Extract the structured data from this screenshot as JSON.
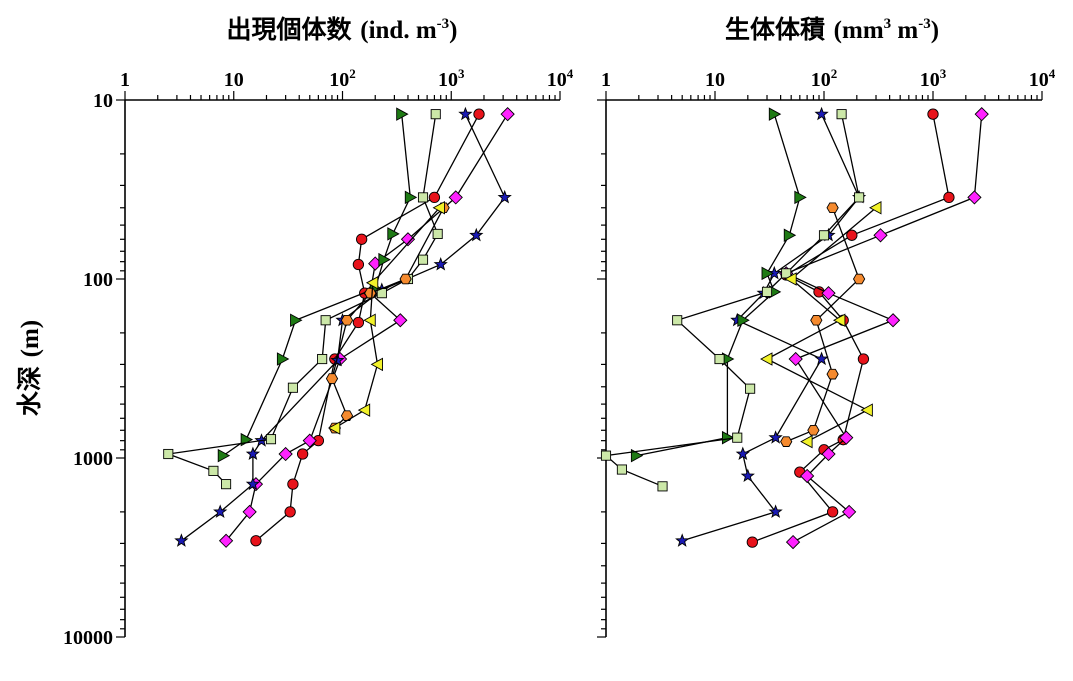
{
  "chart_data": [
    {
      "type": "line",
      "title": "出現個体数 (ind. m-3)",
      "title_main": "出現個体数",
      "title_unit_a": "(ind. m",
      "title_sup": "-3",
      "title_unit_b": ")",
      "x_scale": "log",
      "xlim": [
        1,
        10000
      ],
      "x_ticks": [
        1,
        10,
        100,
        1000,
        10000
      ],
      "x_tick_labels": [
        {
          "base": "1",
          "sup": ""
        },
        {
          "base": "10",
          "sup": ""
        },
        {
          "base": "10",
          "sup": "2"
        },
        {
          "base": "10",
          "sup": "3"
        },
        {
          "base": "10",
          "sup": "4"
        }
      ],
      "x_axis_position": "top",
      "ylabel_main": "水深",
      "ylabel_unit": "(m)",
      "y_scale": "log",
      "ylim": [
        10,
        10000
      ],
      "y_inverted": true,
      "y_ticks": [
        10,
        100,
        1000,
        10000
      ],
      "y_tick_labels": [
        "10",
        "100",
        "1000",
        "10000"
      ],
      "series": [
        {
          "color": "#e8131b",
          "marker": "circle",
          "points": [
            [
              1800,
              12
            ],
            [
              700,
              35
            ],
            [
              150,
              60
            ],
            [
              140,
              83
            ],
            [
              160,
              120
            ],
            [
              140,
              175
            ],
            [
              85,
              280
            ],
            [
              60,
              800
            ],
            [
              43,
              950
            ],
            [
              35,
              1400
            ],
            [
              33,
              2000
            ],
            [
              16,
              2900
            ]
          ]
        },
        {
          "color": "#ff22ff",
          "marker": "diamond",
          "points": [
            [
              3300,
              12
            ],
            [
              1100,
              35
            ],
            [
              400,
              60
            ],
            [
              200,
              82
            ],
            [
              180,
              120
            ],
            [
              340,
              170
            ],
            [
              95,
              280
            ],
            [
              50,
              800
            ],
            [
              30,
              950
            ],
            [
              16,
              1400
            ],
            [
              14,
              2000
            ],
            [
              8.5,
              2900
            ]
          ]
        },
        {
          "color": "#1a1ab4",
          "marker": "star",
          "points": [
            [
              1350,
              12
            ],
            [
              3100,
              35
            ],
            [
              1700,
              57
            ],
            [
              800,
              83
            ],
            [
              230,
              115
            ],
            [
              100,
              170
            ],
            [
              90,
              285
            ],
            [
              18,
              800
            ],
            [
              15,
              950
            ],
            [
              15,
              1400
            ],
            [
              7.5,
              2000
            ],
            [
              3.3,
              2900
            ]
          ]
        },
        {
          "color": "#1e7a14",
          "marker": "triangle-right",
          "points": [
            [
              350,
              12
            ],
            [
              420,
              35
            ],
            [
              290,
              56
            ],
            [
              240,
              78
            ],
            [
              200,
              113
            ],
            [
              37,
              170
            ],
            [
              28,
              280
            ],
            [
              13,
              790
            ],
            [
              8,
              970
            ]
          ]
        },
        {
          "color": "#cce8a8",
          "marker": "square",
          "points": [
            [
              720,
              12
            ],
            [
              550,
              35
            ],
            [
              750,
              56
            ],
            [
              550,
              78
            ],
            [
              400,
              100
            ],
            [
              230,
              120
            ],
            [
              70,
              170
            ],
            [
              65,
              280
            ],
            [
              35,
              405
            ],
            [
              22,
              785
            ],
            [
              2.5,
              950
            ],
            [
              6.5,
              1180
            ],
            [
              8.5,
              1400
            ]
          ]
        },
        {
          "color": "#f58a2e",
          "marker": "hexagon",
          "points": [
            [
              850,
              40
            ],
            [
              380,
              100
            ],
            [
              180,
              120
            ],
            [
              110,
              170
            ],
            [
              80,
              360
            ],
            [
              110,
              580
            ],
            [
              85,
              680
            ]
          ]
        },
        {
          "color": "#f2f22a",
          "marker": "triangle-left",
          "points": [
            [
              780,
              40
            ],
            [
              190,
              105
            ],
            [
              180,
              170
            ],
            [
              210,
              300
            ],
            [
              160,
              540
            ],
            [
              85,
              680
            ]
          ]
        }
      ]
    },
    {
      "type": "line",
      "title": "生体体積 (mm3 m-3)",
      "title_main": "生体体積",
      "title_unit_a": "(mm",
      "title_sup": "3",
      "title_unit_mid": " m",
      "title_sup2": "-3",
      "title_unit_b": ")",
      "x_scale": "log",
      "xlim": [
        1,
        10000
      ],
      "x_ticks": [
        1,
        10,
        100,
        1000,
        10000
      ],
      "x_tick_labels": [
        {
          "base": "1",
          "sup": ""
        },
        {
          "base": "10",
          "sup": ""
        },
        {
          "base": "10",
          "sup": "2"
        },
        {
          "base": "10",
          "sup": "3"
        },
        {
          "base": "10",
          "sup": "4"
        }
      ],
      "x_axis_position": "top",
      "y_scale": "log",
      "ylim": [
        10,
        10000
      ],
      "y_inverted": true,
      "series": [
        {
          "color": "#e8131b",
          "marker": "circle",
          "points": [
            [
              1000,
              12
            ],
            [
              1400,
              35
            ],
            [
              180,
              57
            ],
            [
              45,
              95
            ],
            [
              90,
              118
            ],
            [
              150,
              170
            ],
            [
              230,
              280
            ],
            [
              150,
              790
            ],
            [
              100,
              900
            ],
            [
              60,
              1200
            ],
            [
              120,
              2000
            ],
            [
              22,
              2950
            ]
          ]
        },
        {
          "color": "#ff22ff",
          "marker": "diamond",
          "points": [
            [
              2800,
              12
            ],
            [
              2400,
              35
            ],
            [
              330,
              57
            ],
            [
              45,
              93
            ],
            [
              110,
              120
            ],
            [
              430,
              170
            ],
            [
              55,
              280
            ],
            [
              160,
              770
            ],
            [
              110,
              950
            ],
            [
              70,
              1260
            ],
            [
              170,
              2000
            ],
            [
              52,
              2950
            ]
          ]
        },
        {
          "color": "#1a1ab4",
          "marker": "star",
          "points": [
            [
              95,
              12
            ],
            [
              210,
              35
            ],
            [
              110,
              57
            ],
            [
              35,
              93
            ],
            [
              28,
              120
            ],
            [
              16,
              170
            ],
            [
              95,
              280
            ],
            [
              36,
              770
            ],
            [
              18,
              950
            ],
            [
              20,
              1260
            ],
            [
              36,
              2000
            ],
            [
              5,
              2900
            ]
          ]
        },
        {
          "color": "#1e7a14",
          "marker": "triangle-right",
          "points": [
            [
              35,
              12
            ],
            [
              60,
              35
            ],
            [
              48,
              57
            ],
            [
              30,
              93
            ],
            [
              35,
              118
            ],
            [
              18,
              170
            ],
            [
              13,
              280
            ],
            [
              13,
              770
            ],
            [
              1.9,
              970
            ]
          ]
        },
        {
          "color": "#cce8a8",
          "marker": "square",
          "points": [
            [
              145,
              12
            ],
            [
              210,
              35
            ],
            [
              100,
              57
            ],
            [
              45,
              93
            ],
            [
              30,
              118
            ],
            [
              4.5,
              170
            ],
            [
              11,
              280
            ],
            [
              21,
              410
            ],
            [
              16,
              770
            ],
            [
              1,
              970
            ],
            [
              1.4,
              1160
            ],
            [
              3.3,
              1440
            ]
          ]
        },
        {
          "color": "#f58a2e",
          "marker": "hexagon",
          "points": [
            [
              120,
              40
            ],
            [
              210,
              100
            ],
            [
              85,
              170
            ],
            [
              120,
              340
            ],
            [
              80,
              700
            ],
            [
              45,
              810
            ]
          ]
        },
        {
          "color": "#f2f22a",
          "marker": "triangle-left",
          "points": [
            [
              300,
              40
            ],
            [
              50,
              100
            ],
            [
              140,
              170
            ],
            [
              30,
              280
            ],
            [
              250,
              540
            ],
            [
              70,
              810
            ]
          ]
        }
      ]
    }
  ]
}
